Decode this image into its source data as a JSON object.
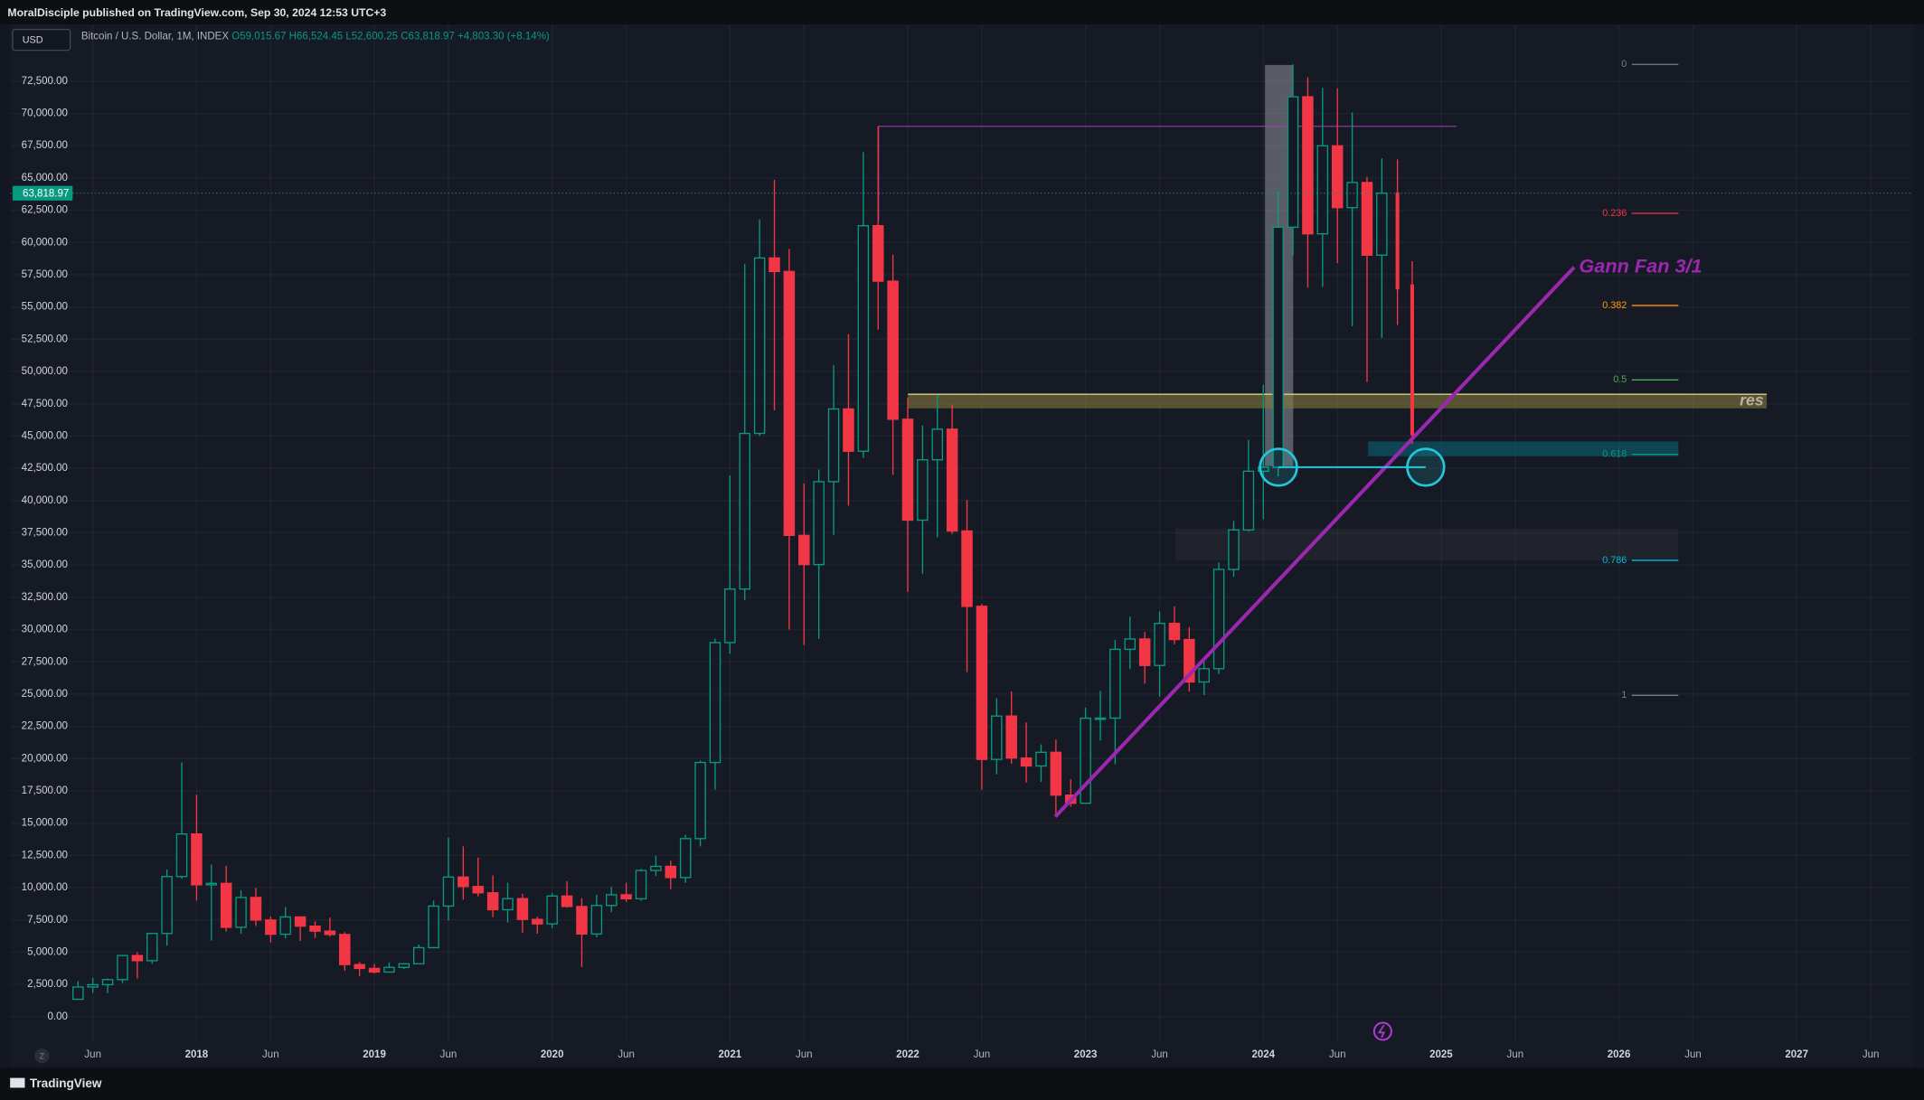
{
  "chart_data": {
    "type": "candlestick",
    "header": "MoralDisciple published on TradingView.com, Sep 30, 2024 12:53 UTC+3",
    "currency": "USD",
    "legend": {
      "symbol": "Bitcoin / U.S. Dollar, 1M, INDEX",
      "open": "O59,015.67",
      "high": "H66,524.45",
      "low": "L52,600.25",
      "close": "C63,818.97",
      "change": "+4,803.30 (+8.14%)"
    },
    "last_price_label": "63,818.97",
    "footer": "TradingView",
    "zoom": "Z",
    "annotations": [
      "Gann Fan 3/1",
      "res"
    ],
    "up_color": "#089981",
    "down_color": "#f23645",
    "grid": true,
    "x": [
      "2017-05",
      "2017-06",
      "2017-07",
      "2017-08",
      "2017-09",
      "2017-10",
      "2017-11",
      "2017-12",
      "2018-01",
      "2018-02",
      "2018-03",
      "2018-04",
      "2018-05",
      "2018-06",
      "2018-07",
      "2018-08",
      "2018-09",
      "2018-10",
      "2018-11",
      "2018-12",
      "2019-01",
      "2019-02",
      "2019-03",
      "2019-04",
      "2019-05",
      "2019-06",
      "2019-07",
      "2019-08",
      "2019-09",
      "2019-10",
      "2019-11",
      "2019-12",
      "2020-01",
      "2020-02",
      "2020-03",
      "2020-04",
      "2020-05",
      "2020-06",
      "2020-07",
      "2020-08",
      "2020-09",
      "2020-10",
      "2020-11",
      "2020-12",
      "2021-01",
      "2021-02",
      "2021-03",
      "2021-04",
      "2021-05",
      "2021-06",
      "2021-07",
      "2021-08",
      "2021-09",
      "2021-10",
      "2021-11",
      "2021-12",
      "2022-01",
      "2022-02",
      "2022-03",
      "2022-04",
      "2022-05",
      "2022-06",
      "2022-07",
      "2022-08",
      "2022-09",
      "2022-10",
      "2022-11",
      "2022-12",
      "2023-01",
      "2023-02",
      "2023-03",
      "2023-04",
      "2023-05",
      "2023-06",
      "2023-07",
      "2023-08",
      "2023-09",
      "2023-10",
      "2023-11",
      "2023-12",
      "2024-01",
      "2024-02",
      "2024-03",
      "2024-04",
      "2024-05",
      "2024-06",
      "2024-07",
      "2024-08",
      "2024-09"
    ],
    "open": [
      1348,
      2300,
      2480,
      2875,
      4740,
      4340,
      6450,
      10860,
      14160,
      10220,
      10330,
      6930,
      9240,
      7490,
      6390,
      7730,
      7020,
      6630,
      6370,
      4040,
      3740,
      3460,
      3820,
      4100,
      5350,
      8570,
      10820,
      10090,
      9600,
      8290,
      9150,
      7540,
      7190,
      9350,
      8540,
      6410,
      8620,
      9450,
      9140,
      11330,
      11650,
      10780,
      13800,
      19700,
      28990,
      33140,
      45200,
      58800,
      57750,
      37300,
      35040,
      41460,
      47100,
      43820,
      61300,
      57000,
      46300,
      38480,
      43160,
      45530,
      37640,
      31800,
      19940,
      23300,
      20050,
      19430,
      20490,
      17170,
      16540,
      23130,
      23140,
      28470,
      29270,
      27220,
      30480,
      29230,
      25940,
      26970,
      34660,
      37720,
      42270,
      42580,
      61180,
      71290,
      60670,
      67490,
      62700,
      64650,
      59015.67
    ],
    "high": [
      2760,
      3000,
      2950,
      4740,
      5000,
      6470,
      11400,
      19700,
      17200,
      11800,
      11700,
      9800,
      9990,
      7770,
      8490,
      7760,
      7400,
      7680,
      6550,
      4230,
      4080,
      4200,
      4140,
      5600,
      9000,
      13880,
      13200,
      12320,
      10950,
      10370,
      9520,
      7750,
      9570,
      10500,
      9190,
      9460,
      10070,
      10380,
      11450,
      12470,
      12080,
      14100,
      19850,
      29300,
      41950,
      58350,
      61780,
      64850,
      59500,
      41330,
      42400,
      50500,
      52900,
      67000,
      69000,
      59050,
      47990,
      45820,
      48190,
      47440,
      40050,
      31970,
      24670,
      25200,
      22800,
      21100,
      21480,
      18400,
      23950,
      25250,
      29200,
      31000,
      29820,
      31400,
      31800,
      30200,
      27500,
      35200,
      38420,
      44700,
      48980,
      64000,
      73800,
      72800,
      71980,
      71950,
      70080,
      65100,
      66524.45
    ],
    "low": [
      1348,
      1850,
      1830,
      2600,
      2950,
      4100,
      5500,
      10700,
      9000,
      5900,
      6600,
      6430,
      7030,
      5750,
      6070,
      5880,
      6100,
      6200,
      3560,
      3130,
      3350,
      3390,
      3690,
      4080,
      5320,
      7450,
      9070,
      9320,
      7710,
      7300,
      6500,
      6430,
      6850,
      8450,
      3850,
      6150,
      8100,
      8900,
      8980,
      10900,
      9880,
      10370,
      13200,
      17600,
      28130,
      32300,
      45000,
      47000,
      30000,
      28800,
      29280,
      37330,
      39600,
      43300,
      53250,
      42000,
      32930,
      34320,
      37160,
      37400,
      26700,
      17600,
      18780,
      19600,
      18150,
      18200,
      15480,
      16270,
      16500,
      21400,
      19570,
      26940,
      25810,
      24800,
      28860,
      25200,
      24920,
      26560,
      34100,
      37600,
      38550,
      41880,
      59000,
      56500,
      56550,
      58400,
      53500,
      49200,
      52600.25
    ],
    "close": [
      2300,
      2480,
      2875,
      4740,
      4340,
      6450,
      10860,
      14160,
      10220,
      10330,
      6930,
      9240,
      7490,
      6390,
      7730,
      7020,
      6630,
      6370,
      4040,
      3740,
      3460,
      3820,
      4100,
      5350,
      8570,
      10820,
      10090,
      9600,
      8290,
      9150,
      7540,
      7190,
      9350,
      8540,
      6410,
      8620,
      9450,
      9140,
      11330,
      11650,
      10780,
      13800,
      19700,
      28990,
      33140,
      45200,
      58800,
      57750,
      37300,
      35040,
      41460,
      47100,
      43820,
      61300,
      57000,
      46300,
      38480,
      43160,
      45530,
      37640,
      31800,
      19940,
      23300,
      20050,
      19430,
      20490,
      17170,
      16540,
      23130,
      23140,
      28470,
      29270,
      27220,
      30480,
      29230,
      25940,
      26970,
      34660,
      37720,
      42270,
      42580,
      61180,
      71290,
      60670,
      67490,
      62700,
      64650,
      59015.67,
      63818.97
    ],
    "xlim": [
      "2016-12",
      "2027-08"
    ],
    "xticks": [
      {
        "value": "2017-06",
        "label": "Jun"
      },
      {
        "value": "2018-01",
        "label": "2018"
      },
      {
        "value": "2018-06",
        "label": "Jun"
      },
      {
        "value": "2019-01",
        "label": "2019"
      },
      {
        "value": "2019-06",
        "label": "Jun"
      },
      {
        "value": "2020-01",
        "label": "2020"
      },
      {
        "value": "2020-06",
        "label": "Jun"
      },
      {
        "value": "2021-01",
        "label": "2021"
      },
      {
        "value": "2021-06",
        "label": "Jun"
      },
      {
        "value": "2022-01",
        "label": "2022"
      },
      {
        "value": "2022-06",
        "label": "Jun"
      },
      {
        "value": "2023-01",
        "label": "2023"
      },
      {
        "value": "2023-06",
        "label": "Jun"
      },
      {
        "value": "2024-01",
        "label": "2024"
      },
      {
        "value": "2024-06",
        "label": "Jun"
      },
      {
        "value": "2025-01",
        "label": "2025"
      },
      {
        "value": "2025-06",
        "label": "Jun"
      },
      {
        "value": "2026-01",
        "label": "2026"
      },
      {
        "value": "2026-06",
        "label": "Jun"
      },
      {
        "value": "2027-01",
        "label": "2027"
      },
      {
        "value": "2027-06",
        "label": "Jun"
      }
    ],
    "ylim": [
      -1800,
      76700
    ],
    "yticks": [
      {
        "value": 0,
        "label": "0.00"
      },
      {
        "value": 2500,
        "label": "2,500.00"
      },
      {
        "value": 5000,
        "label": "5,000.00"
      },
      {
        "value": 7500,
        "label": "7,500.00"
      },
      {
        "value": 10000,
        "label": "10,000.00"
      },
      {
        "value": 12500,
        "label": "12,500.00"
      },
      {
        "value": 15000,
        "label": "15,000.00"
      },
      {
        "value": 17500,
        "label": "17,500.00"
      },
      {
        "value": 20000,
        "label": "20,000.00"
      },
      {
        "value": 22500,
        "label": "22,500.00"
      },
      {
        "value": 25000,
        "label": "25,000.00"
      },
      {
        "value": 27500,
        "label": "27,500.00"
      },
      {
        "value": 30000,
        "label": "30,000.00"
      },
      {
        "value": 32500,
        "label": "32,500.00"
      },
      {
        "value": 35000,
        "label": "35,000.00"
      },
      {
        "value": 37500,
        "label": "37,500.00"
      },
      {
        "value": 40000,
        "label": "40,000.00"
      },
      {
        "value": 42500,
        "label": "42,500.00"
      },
      {
        "value": 45000,
        "label": "45,000.00"
      },
      {
        "value": 47500,
        "label": "47,500.00"
      },
      {
        "value": 50000,
        "label": "50,000.00"
      },
      {
        "value": 52500,
        "label": "52,500.00"
      },
      {
        "value": 55000,
        "label": "55,000.00"
      },
      {
        "value": 57500,
        "label": "57,500.00"
      },
      {
        "value": 60000,
        "label": "60,000.00"
      },
      {
        "value": 62500,
        "label": "62,500.00"
      },
      {
        "value": 65000,
        "label": "65,000.00"
      },
      {
        "value": 67500,
        "label": "67,500.00"
      },
      {
        "value": 70000,
        "label": "70,000.00"
      },
      {
        "value": 72500,
        "label": "72,500.00"
      }
    ],
    "fib": {
      "top": 73800,
      "bottom": 24900,
      "levels": [
        0,
        0.236,
        0.382,
        0.5,
        0.618,
        0.786,
        1
      ],
      "colors": [
        "#787b86",
        "#f23645",
        "#ff9800",
        "#4caf50",
        "#089981",
        "#00bcd4",
        "#787b86"
      ]
    }
  }
}
